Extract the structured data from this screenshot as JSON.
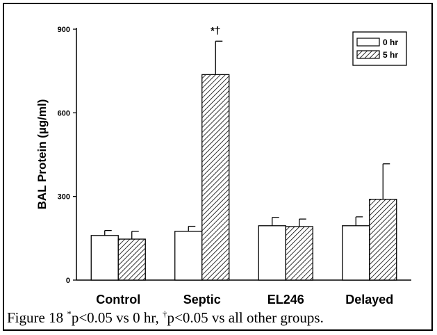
{
  "chart_data": {
    "type": "bar",
    "categories": [
      "Control",
      "Septic",
      "EL246",
      "Delayed"
    ],
    "series": [
      {
        "name": "0 hr",
        "values": [
          160,
          175,
          195,
          195
        ],
        "errors": [
          18,
          18,
          30,
          32
        ],
        "fill": "white"
      },
      {
        "name": "5 hr",
        "values": [
          147,
          737,
          192,
          290
        ],
        "errors": [
          28,
          120,
          27,
          127
        ],
        "fill": "hatch"
      }
    ],
    "ylabel": "BAL Protein (µg/ml)",
    "xlabel": "",
    "ylim": [
      0,
      900
    ],
    "yticks": [
      0,
      300,
      600,
      900
    ],
    "annotations": [
      {
        "category": "Septic",
        "series": "5 hr",
        "text": "*†"
      }
    ],
    "legend_position": "top-right",
    "grid": false
  },
  "caption": {
    "prefix": "Figure 18 ",
    "mark1": "*",
    "text1": "p<0.05 vs 0 hr, ",
    "mark2": "†",
    "text2": "p<0.05 vs all other groups."
  },
  "colors": {
    "ink": "#000000",
    "background": "#ffffff"
  }
}
